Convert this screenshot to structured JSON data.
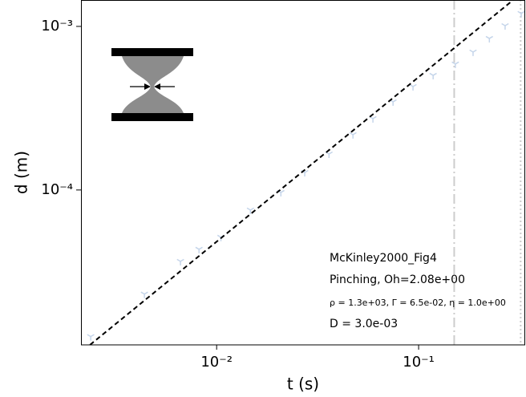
{
  "chart_data": {
    "type": "scatter",
    "xlabel": "t (s)",
    "ylabel": "d (m)",
    "xscale": "log",
    "yscale": "log",
    "xlim": [
      0.00213,
      0.337
    ],
    "ylim": [
      1.13e-05,
      0.00145
    ],
    "xticks": [
      {
        "value": 0.01,
        "label": "10⁻²"
      },
      {
        "value": 0.1,
        "label": "10⁻¹"
      }
    ],
    "yticks": [
      {
        "value": 0.0001,
        "label": "10⁻⁴"
      },
      {
        "value": 0.001,
        "label": "10⁻³"
      }
    ],
    "color": "#c5d5ea",
    "marker": "tri",
    "x": [
      0.00238,
      0.00439,
      0.00662,
      0.00818,
      0.0105,
      0.0147,
      0.0208,
      0.0273,
      0.036,
      0.0473,
      0.0594,
      0.0747,
      0.0938,
      0.118,
      0.152,
      0.186,
      0.224,
      0.268,
      0.322
    ],
    "values": [
      1.27e-05,
      2.31e-05,
      3.66e-05,
      4.34e-05,
      5.14e-05,
      7.54e-05,
      9.66e-05,
      0.000128,
      0.000166,
      0.000218,
      0.000273,
      0.000346,
      0.000429,
      0.000502,
      0.000589,
      0.000697,
      0.000844,
      0.00101,
      0.0012
    ],
    "lines": [
      {
        "x": [
          0.00236,
          0.294
        ],
        "y": [
          1.13e-05,
          0.00145
        ],
        "color": "#000000",
        "style": "dashed"
      }
    ],
    "vlines": [
      {
        "value": 0.15,
        "color": "#cccccc",
        "style": "dashdot"
      },
      {
        "value": 0.32,
        "color": "#cccccc",
        "style": "dotted"
      }
    ],
    "annotations": [
      "McKinley2000_Fig4",
      "Pinching, Oh=2.08e+00",
      "ρ = 1.3e+03, Γ = 6.5e-02, η = 1.0e+00",
      "D = 3.0e-03"
    ]
  }
}
